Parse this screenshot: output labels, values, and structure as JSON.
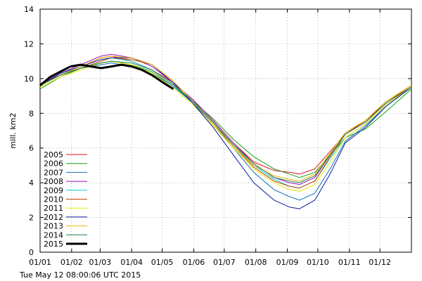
{
  "chart_data": {
    "type": "line",
    "ylabel": "mill. km2",
    "xlim": [
      0,
      365
    ],
    "ylim": [
      0,
      14
    ],
    "y_ticks": [
      0,
      2,
      4,
      6,
      8,
      10,
      12,
      14
    ],
    "x_ticks": [
      {
        "label": "01/01",
        "day": 0
      },
      {
        "label": "01/02",
        "day": 31
      },
      {
        "label": "01/03",
        "day": 59
      },
      {
        "label": "01/04",
        "day": 90
      },
      {
        "label": "01/05",
        "day": 120
      },
      {
        "label": "01/06",
        "day": 151
      },
      {
        "label": "01/07",
        "day": 181
      },
      {
        "label": "01/08",
        "day": 212
      },
      {
        "label": "01/09",
        "day": 243
      },
      {
        "label": "01/10",
        "day": 273
      },
      {
        "label": "01/11",
        "day": 304
      },
      {
        "label": "01/12",
        "day": 334
      }
    ],
    "legend_position": "bottom-left",
    "series": [
      {
        "name": "2005",
        "color": "#e0101a",
        "x": [
          0,
          20,
          40,
          60,
          70,
          90,
          110,
          130,
          150,
          170,
          190,
          210,
          230,
          245,
          255,
          270,
          285,
          300,
          320,
          340,
          365
        ],
        "y": [
          9.7,
          10.2,
          10.7,
          11.2,
          11.3,
          11.0,
          10.5,
          9.8,
          8.8,
          7.6,
          6.3,
          5.2,
          4.7,
          4.6,
          4.5,
          4.8,
          5.8,
          6.8,
          7.6,
          8.6,
          9.6
        ]
      },
      {
        "name": "2006",
        "color": "#10a010",
        "x": [
          0,
          20,
          40,
          60,
          70,
          90,
          110,
          130,
          150,
          170,
          190,
          210,
          230,
          245,
          255,
          270,
          285,
          300,
          320,
          340,
          365
        ],
        "y": [
          9.4,
          10.1,
          10.6,
          10.9,
          11.0,
          10.8,
          10.4,
          9.6,
          8.7,
          7.7,
          6.5,
          5.5,
          4.8,
          4.5,
          4.3,
          4.6,
          5.6,
          6.6,
          7.1,
          8.1,
          9.4
        ]
      },
      {
        "name": "2007",
        "color": "#1070c0",
        "x": [
          0,
          20,
          40,
          60,
          70,
          90,
          110,
          130,
          150,
          170,
          190,
          210,
          230,
          245,
          255,
          270,
          285,
          300,
          320,
          340,
          365
        ],
        "y": [
          9.6,
          10.2,
          10.6,
          10.8,
          10.9,
          10.7,
          10.3,
          9.6,
          8.6,
          7.4,
          6.0,
          4.6,
          3.6,
          3.2,
          3.0,
          3.4,
          4.8,
          6.4,
          7.3,
          8.4,
          9.5
        ]
      },
      {
        "name": "2008",
        "color": "#a010c0",
        "x": [
          0,
          20,
          40,
          60,
          70,
          90,
          110,
          130,
          150,
          170,
          190,
          210,
          230,
          245,
          255,
          270,
          285,
          300,
          320,
          340,
          365
        ],
        "y": [
          9.7,
          10.3,
          10.8,
          11.3,
          11.4,
          11.2,
          10.7,
          9.8,
          8.8,
          7.6,
          6.3,
          5.1,
          4.3,
          4.0,
          3.9,
          4.3,
          5.6,
          6.8,
          7.5,
          8.6,
          9.6
        ]
      },
      {
        "name": "2009",
        "color": "#10c8d8",
        "x": [
          0,
          20,
          40,
          60,
          70,
          90,
          110,
          130,
          150,
          170,
          190,
          210,
          230,
          245,
          255,
          270,
          285,
          300,
          320,
          340,
          365
        ],
        "y": [
          9.6,
          10.2,
          10.7,
          11.1,
          11.2,
          11.0,
          10.5,
          9.7,
          8.7,
          7.5,
          6.2,
          5.0,
          4.2,
          3.8,
          3.7,
          4.1,
          5.4,
          6.6,
          7.4,
          8.5,
          9.5
        ]
      },
      {
        "name": "2010",
        "color": "#c04000",
        "x": [
          0,
          20,
          40,
          60,
          70,
          90,
          110,
          130,
          150,
          170,
          190,
          210,
          230,
          245,
          255,
          270,
          285,
          300,
          320,
          340,
          365
        ],
        "y": [
          9.7,
          10.2,
          10.6,
          11.0,
          11.2,
          11.1,
          10.8,
          9.9,
          8.7,
          7.5,
          6.1,
          4.9,
          4.1,
          3.8,
          3.7,
          4.1,
          5.5,
          6.8,
          7.5,
          8.6,
          9.6
        ]
      },
      {
        "name": "2011",
        "color": "#e8e800",
        "x": [
          0,
          20,
          40,
          60,
          70,
          90,
          110,
          130,
          150,
          170,
          190,
          210,
          230,
          245,
          255,
          270,
          285,
          300,
          320,
          340,
          365
        ],
        "y": [
          9.5,
          10.1,
          10.5,
          10.9,
          11.0,
          10.8,
          10.3,
          9.5,
          8.5,
          7.3,
          6.0,
          4.8,
          4.0,
          3.6,
          3.5,
          3.9,
          5.2,
          6.6,
          7.4,
          8.5,
          9.5
        ]
      },
      {
        "name": "2012",
        "color": "#0a1aa0",
        "x": [
          0,
          20,
          40,
          60,
          70,
          90,
          110,
          130,
          150,
          170,
          190,
          210,
          230,
          245,
          255,
          270,
          285,
          300,
          320,
          340,
          365
        ],
        "y": [
          9.6,
          10.3,
          10.7,
          11.1,
          11.2,
          11.2,
          10.8,
          9.8,
          8.6,
          7.2,
          5.6,
          4.0,
          3.0,
          2.6,
          2.5,
          3.0,
          4.5,
          6.3,
          7.2,
          8.4,
          9.5
        ]
      },
      {
        "name": "2013",
        "color": "#e8b800",
        "x": [
          0,
          20,
          40,
          60,
          70,
          90,
          110,
          130,
          150,
          170,
          190,
          210,
          230,
          245,
          255,
          270,
          285,
          300,
          320,
          340,
          365
        ],
        "y": [
          9.6,
          10.2,
          10.7,
          11.2,
          11.3,
          11.2,
          10.8,
          9.9,
          8.7,
          7.4,
          6.1,
          5.0,
          4.4,
          4.2,
          4.1,
          4.5,
          5.7,
          6.9,
          7.6,
          8.7,
          9.6
        ]
      },
      {
        "name": "2014",
        "color": "#208040",
        "x": [
          0,
          20,
          40,
          60,
          70,
          90,
          110,
          130,
          150,
          170,
          190,
          210,
          230,
          245,
          255,
          270,
          285,
          300,
          320,
          340,
          365
        ],
        "y": [
          9.6,
          10.2,
          10.6,
          10.9,
          11.0,
          10.9,
          10.5,
          9.7,
          8.7,
          7.5,
          6.2,
          5.1,
          4.3,
          4.1,
          4.0,
          4.4,
          5.6,
          6.8,
          7.5,
          8.6,
          9.5
        ]
      },
      {
        "name": "2015",
        "color": "#000000",
        "x": [
          0,
          10,
          20,
          30,
          40,
          50,
          60,
          70,
          80,
          90,
          100,
          110,
          120,
          131
        ],
        "y": [
          9.6,
          10.1,
          10.4,
          10.7,
          10.8,
          10.7,
          10.6,
          10.7,
          10.8,
          10.7,
          10.5,
          10.2,
          9.8,
          9.4
        ]
      }
    ]
  },
  "footer": {
    "timestamp": "Tue May 12 08:00:06 UTC 2015"
  }
}
